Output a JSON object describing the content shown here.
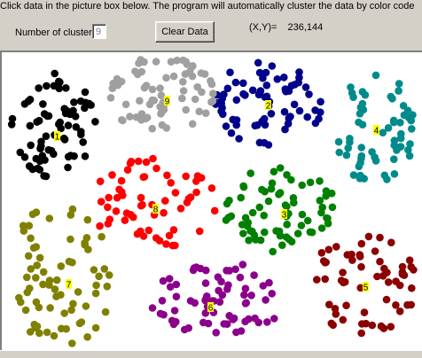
{
  "instruction": "Click data in the picture box below. The program will automatically cluster the data by color code",
  "cluster": {
    "label": "Number of cluster",
    "value": "9"
  },
  "clear_button": "Clear Data",
  "coords": {
    "label": "(X,Y)=",
    "value": "236,144"
  },
  "clusters": [
    {
      "id": "1",
      "color": "#000000"
    },
    {
      "id": "2",
      "color": "#00008b"
    },
    {
      "id": "3",
      "color": "#008000"
    },
    {
      "id": "4",
      "color": "#008b8b"
    },
    {
      "id": "5",
      "color": "#8b0000"
    },
    {
      "id": "6",
      "color": "#8b008b"
    },
    {
      "id": "7",
      "color": "#808000"
    },
    {
      "id": "8",
      "color": "#ff0000"
    },
    {
      "id": "9",
      "color": "#a0a0a0"
    }
  ]
}
